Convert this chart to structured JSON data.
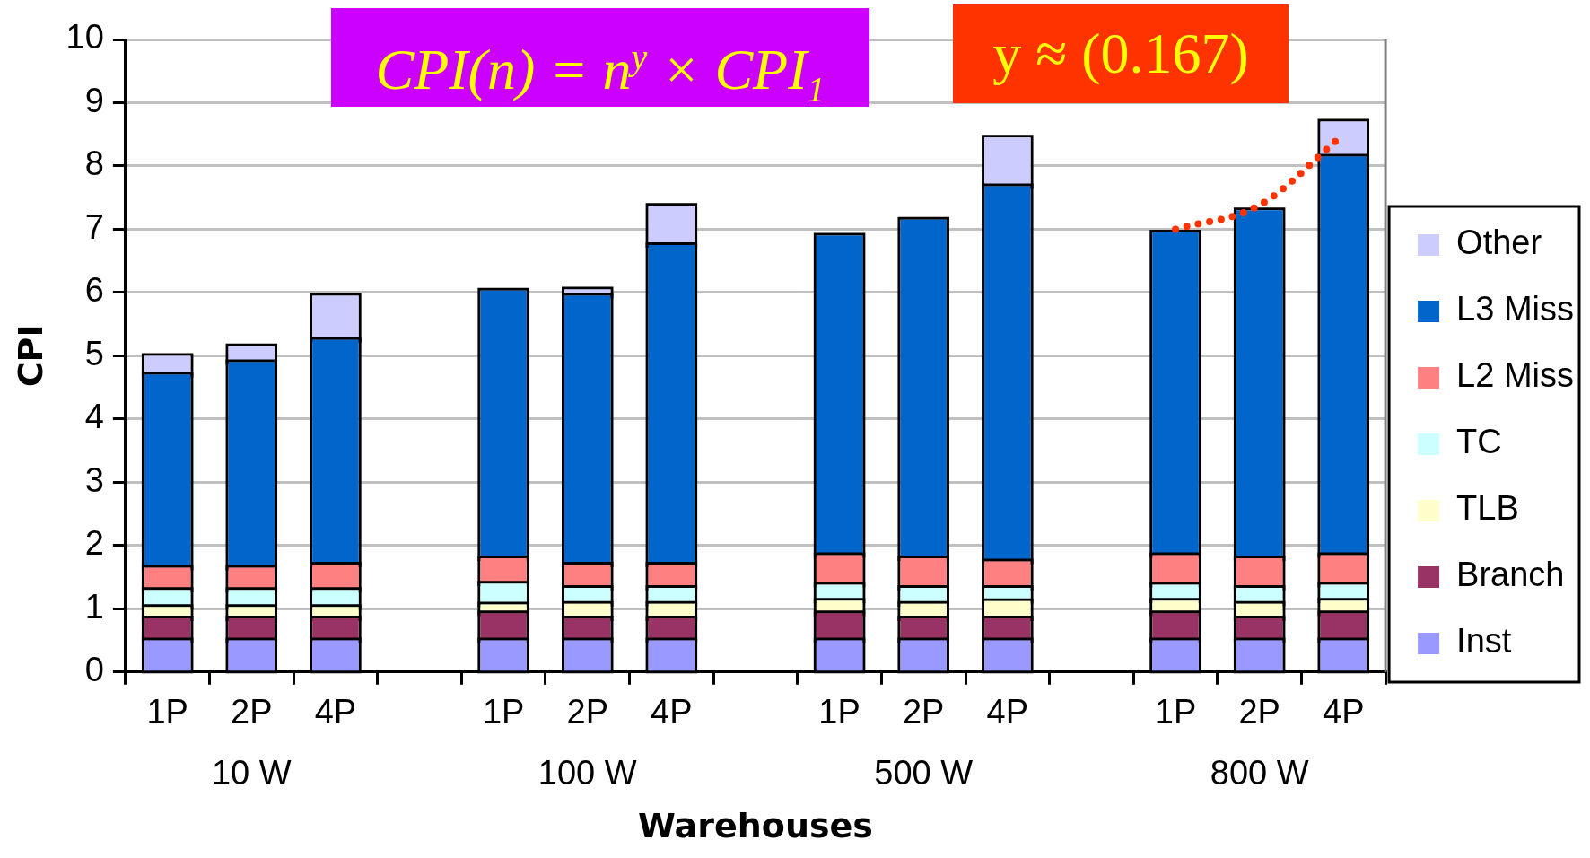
{
  "chart_data": {
    "type": "bar",
    "stacked": true,
    "ylabel": "CPI",
    "xlabel": "Warehouses",
    "categories": [
      "1P",
      "2P",
      "4P",
      null,
      "1P",
      "2P",
      "4P",
      null,
      "1P",
      "2P",
      "4P",
      null,
      "1P",
      "2P",
      "4P"
    ],
    "series": [
      {
        "name": "Inst",
        "color": "#9999ff",
        "values": [
          0.5,
          0.5,
          0.5,
          null,
          0.5,
          0.5,
          0.5,
          null,
          0.5,
          0.5,
          0.5,
          null,
          0.5,
          0.5,
          0.5
        ]
      },
      {
        "name": "Branch",
        "color": "#993366",
        "values": [
          0.35,
          0.35,
          0.35,
          null,
          0.43,
          0.35,
          0.35,
          null,
          0.43,
          0.35,
          0.35,
          null,
          0.43,
          0.35,
          0.43
        ]
      },
      {
        "name": "TLB",
        "color": "#ffffcc",
        "values": [
          0.18,
          0.18,
          0.18,
          null,
          0.14,
          0.23,
          0.23,
          null,
          0.2,
          0.23,
          0.27,
          null,
          0.2,
          0.23,
          0.2
        ]
      },
      {
        "name": "TC",
        "color": "#ccffff",
        "values": [
          0.27,
          0.27,
          0.27,
          null,
          0.33,
          0.25,
          0.25,
          null,
          0.25,
          0.25,
          0.21,
          null,
          0.25,
          0.25,
          0.25
        ]
      },
      {
        "name": "L2 Miss",
        "color": "#ff8080",
        "values": [
          0.35,
          0.35,
          0.4,
          null,
          0.4,
          0.37,
          0.37,
          null,
          0.47,
          0.47,
          0.42,
          null,
          0.47,
          0.47,
          0.47
        ]
      },
      {
        "name": "L3 Miss",
        "color": "#0066cc",
        "values": [
          3.05,
          3.25,
          3.55,
          null,
          4.23,
          4.25,
          5.05,
          null,
          5.05,
          5.35,
          5.93,
          null,
          5.1,
          5.5,
          6.3
        ]
      },
      {
        "name": "Other",
        "color": "#ccccff",
        "values": [
          0.3,
          0.25,
          0.7,
          null,
          0,
          0.1,
          0.62,
          null,
          0,
          0,
          0.77,
          null,
          0,
          0,
          0.55
        ]
      },
      {
        "type": "line",
        "color": "#ff3300",
        "line_style": "dotted",
        "marker": "none",
        "values": [
          null,
          null,
          null,
          null,
          null,
          null,
          null,
          null,
          null,
          null,
          null,
          null,
          7.0,
          7.38,
          8.5
        ]
      }
    ],
    "ylim": [
      0,
      10
    ],
    "yticks": [
      0,
      1,
      2,
      3,
      4,
      5,
      6,
      7,
      8,
      9,
      10
    ],
    "grid": "y",
    "legend": "right",
    "annotations": [
      "10 W",
      "100 W",
      "500 W",
      "800 W",
      "CPI(n) = n$^{y}$ × CPI$_{1}$",
      "y ≈ (0.167)"
    ]
  }
}
